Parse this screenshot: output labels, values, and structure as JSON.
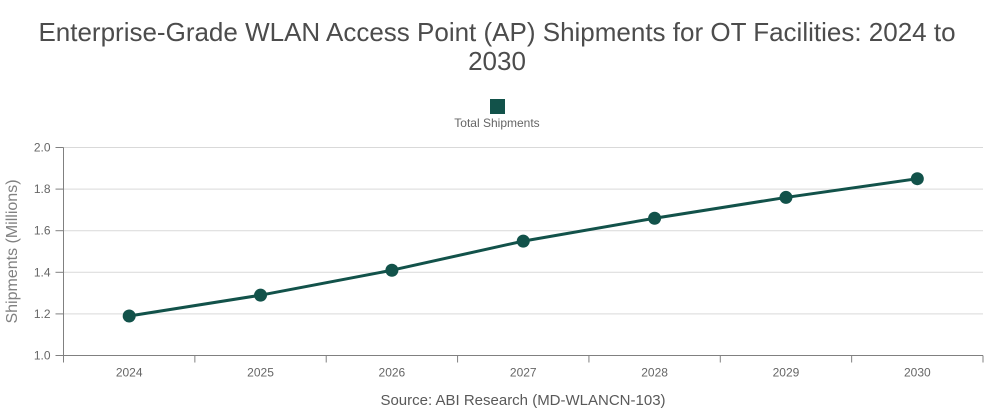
{
  "title": "Enterprise-Grade WLAN Access Point (AP) Shipments for OT Facilities: 2024 to 2030",
  "legend": {
    "label": "Total Shipments"
  },
  "source": "Source: ABI Research (MD-WLANCN-103)",
  "colors": {
    "series": "#12524A",
    "grid": "#D9D9D9",
    "axis": "#808080",
    "tick_label": "#666666",
    "axis_title": "#808080",
    "title": "#4C4C4C",
    "caption": "#595959"
  },
  "chart_data": {
    "type": "line",
    "title": "Enterprise-Grade WLAN Access Point (AP) Shipments for OT Facilities: 2024 to 2030",
    "categories": [
      "2024",
      "2025",
      "2026",
      "2027",
      "2028",
      "2029",
      "2030"
    ],
    "series": [
      {
        "name": "Total Shipments",
        "values": [
          1.19,
          1.29,
          1.41,
          1.55,
          1.66,
          1.76,
          1.85
        ]
      }
    ],
    "xlabel": "",
    "ylabel": "Shipments (Millions)",
    "ylim": [
      1.0,
      2.0
    ],
    "yticks": [
      1.0,
      1.2,
      1.4,
      1.6,
      1.8,
      2.0
    ],
    "grid": true,
    "legend_position": "top",
    "marker": "circle"
  }
}
